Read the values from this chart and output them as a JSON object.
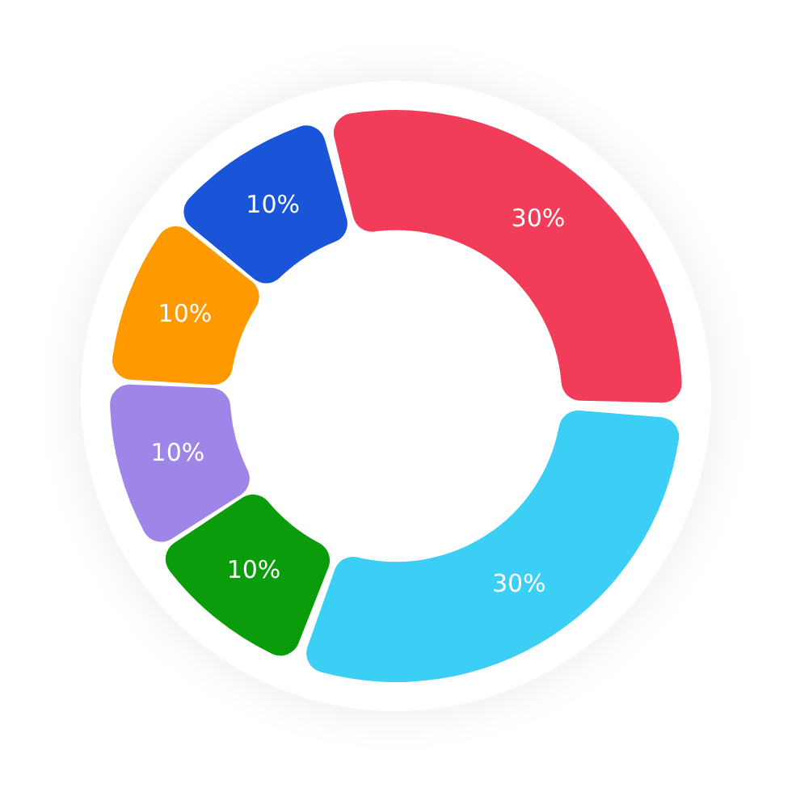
{
  "chart_data": {
    "type": "donut",
    "categories": [
      null,
      null,
      null,
      null,
      null,
      null
    ],
    "values": [
      30,
      30,
      10,
      10,
      10,
      10
    ],
    "colors": [
      "#f23d5a",
      "#3ccff5",
      "#0a9c0a",
      "#9e86e8",
      "#ff9900",
      "#1a55d9"
    ],
    "value_labels": [
      "30%",
      "30%",
      "10%",
      "10%",
      "10%",
      "10%"
    ],
    "legend": false
  }
}
